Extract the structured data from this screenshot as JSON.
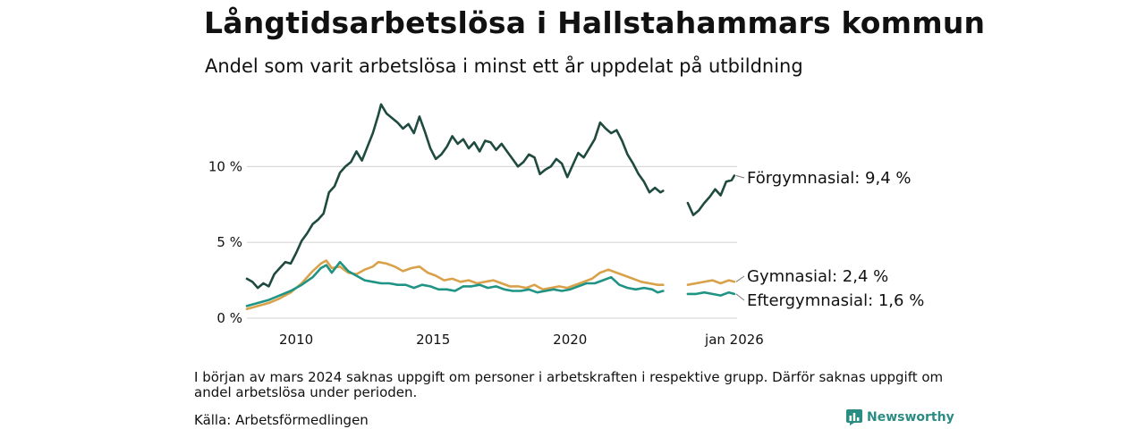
{
  "title": "Långtidsarbetslösa i Hallstahammars kommun",
  "subtitle": "Andel som varit arbetslösa i minst ett år uppdelat på utbildning",
  "note": "I början av mars 2024 saknas uppgift om personer i arbetskraften i respektive grupp. Därför saknas uppgift om andel arbetslösa under perioden.",
  "source": "Källa: Arbetsförmedlingen",
  "brand": "Newsworthy",
  "colors": {
    "forgymnasial": "#1f4a40",
    "gymnasial": "#d9a24a",
    "eftergymnasial": "#1f9485",
    "grid": "#d9d9d9",
    "brand": "#2a8c82"
  },
  "chart_data": {
    "type": "line",
    "title": "Långtidsarbetslösa i Hallstahammars kommun",
    "xlabel": "",
    "ylabel": "",
    "xlim": [
      2008.2,
      2026.1
    ],
    "ylim": [
      0,
      14.5
    ],
    "yticks": [
      0,
      5,
      10
    ],
    "ytick_labels": [
      "0 %",
      "5 %",
      "10 %"
    ],
    "xticks": [
      2010,
      2015,
      2020,
      2026
    ],
    "xtick_labels": [
      "2010",
      "2015",
      "2020",
      "jan 2026"
    ],
    "gap": [
      2024.1,
      2024.3
    ],
    "series": [
      {
        "name": "Förgymnasial",
        "label": "Förgymnasial: 9,4 %",
        "color_key": "forgymnasial",
        "points": [
          [
            2008.2,
            2.6
          ],
          [
            2008.4,
            2.4
          ],
          [
            2008.6,
            2.0
          ],
          [
            2008.8,
            2.3
          ],
          [
            2009.0,
            2.1
          ],
          [
            2009.2,
            2.9
          ],
          [
            2009.4,
            3.3
          ],
          [
            2009.6,
            3.7
          ],
          [
            2009.8,
            3.6
          ],
          [
            2010.0,
            4.3
          ],
          [
            2010.2,
            5.1
          ],
          [
            2010.4,
            5.6
          ],
          [
            2010.6,
            6.2
          ],
          [
            2010.8,
            6.5
          ],
          [
            2011.0,
            6.9
          ],
          [
            2011.2,
            8.3
          ],
          [
            2011.4,
            8.7
          ],
          [
            2011.6,
            9.6
          ],
          [
            2011.8,
            10.0
          ],
          [
            2012.0,
            10.3
          ],
          [
            2012.2,
            11.0
          ],
          [
            2012.4,
            10.4
          ],
          [
            2012.6,
            11.3
          ],
          [
            2012.8,
            12.2
          ],
          [
            2013.0,
            13.4
          ],
          [
            2013.1,
            14.1
          ],
          [
            2013.3,
            13.5
          ],
          [
            2013.5,
            13.2
          ],
          [
            2013.7,
            12.9
          ],
          [
            2013.9,
            12.5
          ],
          [
            2014.1,
            12.8
          ],
          [
            2014.3,
            12.2
          ],
          [
            2014.5,
            13.3
          ],
          [
            2014.7,
            12.3
          ],
          [
            2014.9,
            11.2
          ],
          [
            2015.1,
            10.5
          ],
          [
            2015.3,
            10.8
          ],
          [
            2015.5,
            11.3
          ],
          [
            2015.7,
            12.0
          ],
          [
            2015.9,
            11.5
          ],
          [
            2016.1,
            11.8
          ],
          [
            2016.3,
            11.2
          ],
          [
            2016.5,
            11.6
          ],
          [
            2016.7,
            11.0
          ],
          [
            2016.9,
            11.7
          ],
          [
            2017.1,
            11.6
          ],
          [
            2017.3,
            11.1
          ],
          [
            2017.5,
            11.5
          ],
          [
            2017.7,
            11.0
          ],
          [
            2017.9,
            10.5
          ],
          [
            2018.1,
            10.0
          ],
          [
            2018.3,
            10.3
          ],
          [
            2018.5,
            10.8
          ],
          [
            2018.7,
            10.6
          ],
          [
            2018.9,
            9.5
          ],
          [
            2019.1,
            9.8
          ],
          [
            2019.3,
            10.0
          ],
          [
            2019.5,
            10.5
          ],
          [
            2019.7,
            10.2
          ],
          [
            2019.9,
            9.3
          ],
          [
            2020.1,
            10.1
          ],
          [
            2020.3,
            10.9
          ],
          [
            2020.5,
            10.6
          ],
          [
            2020.7,
            11.2
          ],
          [
            2020.9,
            11.8
          ],
          [
            2021.1,
            12.9
          ],
          [
            2021.3,
            12.5
          ],
          [
            2021.5,
            12.2
          ],
          [
            2021.7,
            12.4
          ],
          [
            2021.9,
            11.7
          ],
          [
            2022.1,
            10.8
          ],
          [
            2022.3,
            10.2
          ],
          [
            2022.5,
            9.5
          ],
          [
            2022.7,
            9.0
          ],
          [
            2022.9,
            8.3
          ],
          [
            2023.1,
            8.6
          ],
          [
            2023.3,
            8.3
          ],
          [
            2023.4,
            8.4
          ],
          [
            null,
            null
          ],
          [
            2024.3,
            7.6
          ],
          [
            2024.5,
            6.8
          ],
          [
            2024.7,
            7.1
          ],
          [
            2024.9,
            7.6
          ],
          [
            2025.1,
            8.0
          ],
          [
            2025.3,
            8.5
          ],
          [
            2025.5,
            8.1
          ],
          [
            2025.7,
            9.0
          ],
          [
            2025.9,
            9.1
          ],
          [
            2026.0,
            9.4
          ]
        ]
      },
      {
        "name": "Gymnasial",
        "label": "Gymnasial: 2,4 %",
        "color_key": "gymnasial",
        "points": [
          [
            2008.2,
            0.6
          ],
          [
            2008.6,
            0.8
          ],
          [
            2009.0,
            1.0
          ],
          [
            2009.4,
            1.3
          ],
          [
            2009.8,
            1.7
          ],
          [
            2010.2,
            2.3
          ],
          [
            2010.6,
            3.1
          ],
          [
            2010.9,
            3.6
          ],
          [
            2011.1,
            3.8
          ],
          [
            2011.3,
            3.3
          ],
          [
            2011.6,
            3.4
          ],
          [
            2011.9,
            3.0
          ],
          [
            2012.2,
            2.9
          ],
          [
            2012.5,
            3.2
          ],
          [
            2012.8,
            3.4
          ],
          [
            2013.0,
            3.7
          ],
          [
            2013.3,
            3.6
          ],
          [
            2013.6,
            3.4
          ],
          [
            2013.9,
            3.1
          ],
          [
            2014.2,
            3.3
          ],
          [
            2014.5,
            3.4
          ],
          [
            2014.8,
            3.0
          ],
          [
            2015.1,
            2.8
          ],
          [
            2015.4,
            2.5
          ],
          [
            2015.7,
            2.6
          ],
          [
            2016.0,
            2.4
          ],
          [
            2016.3,
            2.5
          ],
          [
            2016.6,
            2.3
          ],
          [
            2016.9,
            2.4
          ],
          [
            2017.2,
            2.5
          ],
          [
            2017.5,
            2.3
          ],
          [
            2017.8,
            2.1
          ],
          [
            2018.1,
            2.1
          ],
          [
            2018.4,
            2.0
          ],
          [
            2018.7,
            2.2
          ],
          [
            2019.0,
            1.9
          ],
          [
            2019.3,
            2.0
          ],
          [
            2019.6,
            2.1
          ],
          [
            2019.9,
            2.0
          ],
          [
            2020.2,
            2.2
          ],
          [
            2020.5,
            2.4
          ],
          [
            2020.8,
            2.6
          ],
          [
            2021.1,
            3.0
          ],
          [
            2021.4,
            3.2
          ],
          [
            2021.7,
            3.0
          ],
          [
            2022.0,
            2.8
          ],
          [
            2022.3,
            2.6
          ],
          [
            2022.6,
            2.4
          ],
          [
            2022.9,
            2.3
          ],
          [
            2023.2,
            2.2
          ],
          [
            2023.4,
            2.2
          ],
          [
            null,
            null
          ],
          [
            2024.3,
            2.2
          ],
          [
            2024.6,
            2.3
          ],
          [
            2024.9,
            2.4
          ],
          [
            2025.2,
            2.5
          ],
          [
            2025.5,
            2.3
          ],
          [
            2025.8,
            2.5
          ],
          [
            2026.0,
            2.4
          ]
        ]
      },
      {
        "name": "Eftergymnasial",
        "label": "Eftergymnasial: 1,6 %",
        "color_key": "eftergymnasial",
        "points": [
          [
            2008.2,
            0.8
          ],
          [
            2008.6,
            1.0
          ],
          [
            2009.0,
            1.2
          ],
          [
            2009.4,
            1.5
          ],
          [
            2009.8,
            1.8
          ],
          [
            2010.2,
            2.2
          ],
          [
            2010.6,
            2.7
          ],
          [
            2010.9,
            3.3
          ],
          [
            2011.1,
            3.5
          ],
          [
            2011.3,
            3.0
          ],
          [
            2011.6,
            3.7
          ],
          [
            2011.9,
            3.1
          ],
          [
            2012.2,
            2.8
          ],
          [
            2012.5,
            2.5
          ],
          [
            2012.8,
            2.4
          ],
          [
            2013.1,
            2.3
          ],
          [
            2013.4,
            2.3
          ],
          [
            2013.7,
            2.2
          ],
          [
            2014.0,
            2.2
          ],
          [
            2014.3,
            2.0
          ],
          [
            2014.6,
            2.2
          ],
          [
            2014.9,
            2.1
          ],
          [
            2015.2,
            1.9
          ],
          [
            2015.5,
            1.9
          ],
          [
            2015.8,
            1.8
          ],
          [
            2016.1,
            2.1
          ],
          [
            2016.4,
            2.1
          ],
          [
            2016.7,
            2.2
          ],
          [
            2017.0,
            2.0
          ],
          [
            2017.3,
            2.1
          ],
          [
            2017.6,
            1.9
          ],
          [
            2017.9,
            1.8
          ],
          [
            2018.2,
            1.8
          ],
          [
            2018.5,
            1.9
          ],
          [
            2018.8,
            1.7
          ],
          [
            2019.1,
            1.8
          ],
          [
            2019.4,
            1.9
          ],
          [
            2019.7,
            1.8
          ],
          [
            2020.0,
            1.9
          ],
          [
            2020.3,
            2.1
          ],
          [
            2020.6,
            2.3
          ],
          [
            2020.9,
            2.3
          ],
          [
            2021.2,
            2.5
          ],
          [
            2021.5,
            2.7
          ],
          [
            2021.8,
            2.2
          ],
          [
            2022.1,
            2.0
          ],
          [
            2022.4,
            1.9
          ],
          [
            2022.7,
            2.0
          ],
          [
            2023.0,
            1.9
          ],
          [
            2023.2,
            1.7
          ],
          [
            2023.4,
            1.8
          ],
          [
            null,
            null
          ],
          [
            2024.3,
            1.6
          ],
          [
            2024.6,
            1.6
          ],
          [
            2024.9,
            1.7
          ],
          [
            2025.2,
            1.6
          ],
          [
            2025.5,
            1.5
          ],
          [
            2025.8,
            1.7
          ],
          [
            2026.0,
            1.6
          ]
        ]
      }
    ]
  }
}
